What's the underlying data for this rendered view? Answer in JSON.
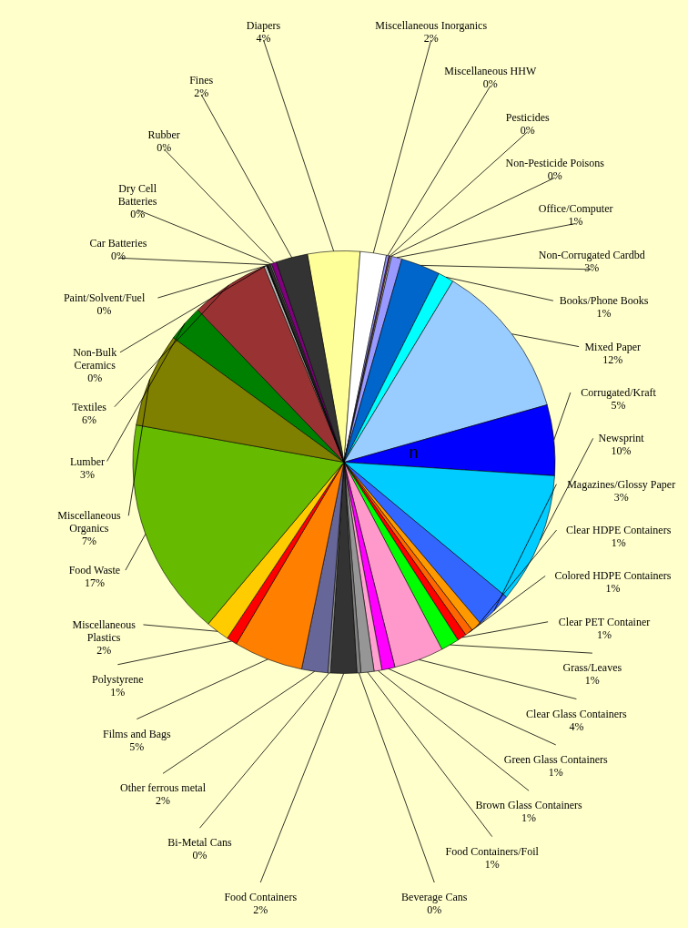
{
  "chart_data": {
    "type": "pie",
    "categories": [
      "Diapers",
      "Miscellaneous Inorganics",
      "Miscellaneous HHW",
      "Pesticides",
      "Non-Pesticide Poisons",
      "Office/Computer",
      "Non-Corrugated Cardbd",
      "Books/Phone Books",
      "Mixed Paper",
      "Corrugated/Kraft",
      "Newsprint",
      "Magazines/Glossy Paper",
      "Clear HDPE Containers",
      "Colored HDPE Containers",
      "Clear PET Container",
      "Grass/Leaves",
      "Clear Glass Containers",
      "Green Glass Containers",
      "Brown Glass Containers",
      "Food Containers/Foil",
      "Beverage Cans",
      "Food Containers",
      "Bi-Metal Cans",
      "Other ferrous metal",
      "Films and Bags",
      "Polystyrene",
      "Miscellaneous Plastics",
      "Food Waste",
      "Miscellaneous Organics",
      "Lumber",
      "Textiles",
      "Non-Bulk Ceramics",
      "Paint/Solvent/Fuel",
      "Car Batteries",
      "Dry Cell Batteries",
      "Rubber",
      "Fines"
    ],
    "values": [
      4.0,
      2.0,
      0.2,
      0.1,
      0.1,
      0.8,
      3.0,
      1.2,
      12.0,
      5.4,
      10.0,
      2.8,
      0.8,
      0.6,
      0.7,
      1.4,
      3.8,
      1.0,
      0.6,
      1.0,
      0.3,
      2.0,
      0.2,
      2.0,
      5.3,
      0.8,
      1.8,
      16.7,
      7.2,
      2.8,
      6.0,
      0.2,
      0.1,
      0.2,
      0.1,
      0.4,
      2.4
    ],
    "value_labels": [
      "4%",
      "2%",
      "0%",
      "0%",
      "0%",
      "1%",
      "3%",
      "1%",
      "12%",
      "5%",
      "10%",
      "3%",
      "1%",
      "1%",
      "1%",
      "1%",
      "4%",
      "1%",
      "1%",
      "1%",
      "0%",
      "2%",
      "0%",
      "2%",
      "5%",
      "1%",
      "2%",
      "17%",
      "7%",
      "3%",
      "6%",
      "0%",
      "0%",
      "0%",
      "0%",
      "0%",
      "2%"
    ],
    "colors": [
      "#ffff99",
      "#ffffff",
      "#9999ff",
      "#993366",
      "#ffffcc",
      "#9999ff",
      "#0066cc",
      "#00ffff",
      "#99ccff",
      "#0000ff",
      "#00ccff",
      "#3366ff",
      "#ff9900",
      "#ff6600",
      "#ff0000",
      "#00ff00",
      "#ff99cc",
      "#ff00ff",
      "#ffa0d0",
      "#969696",
      "#808080",
      "#333333",
      "#999999",
      "#666699",
      "#ff8000",
      "#ff0000",
      "#ffcc00",
      "#66bb00",
      "#808000",
      "#008000",
      "#993333",
      "#c0c0c0",
      "#000000",
      "#333333",
      "#808080",
      "#800080",
      "#333333"
    ],
    "annotations": [
      "n"
    ],
    "legend": false
  }
}
